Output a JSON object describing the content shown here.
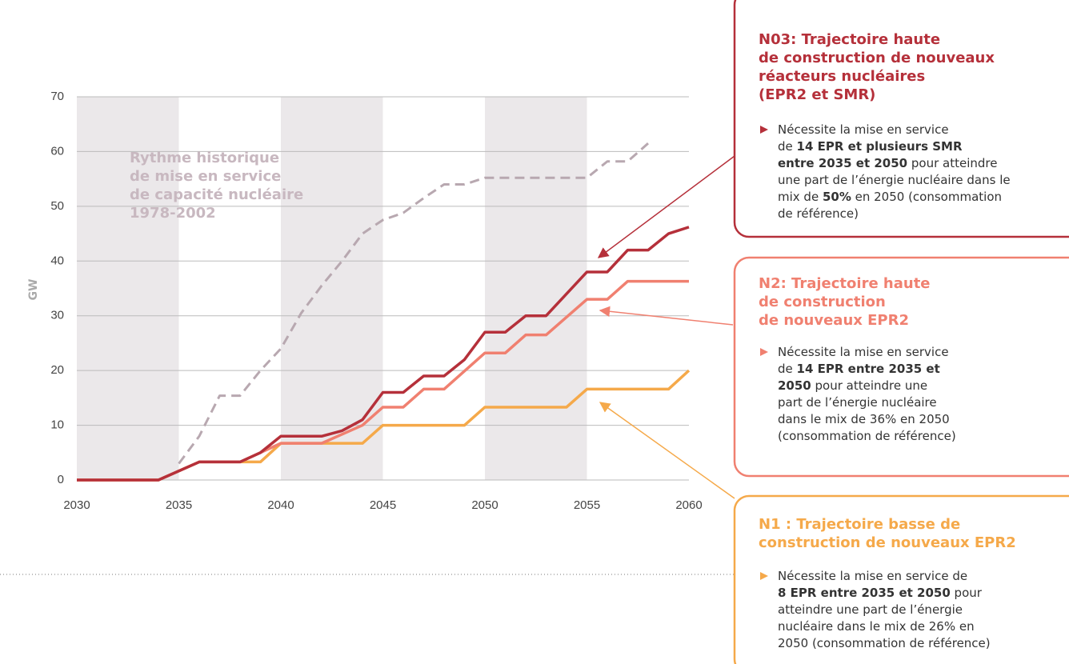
{
  "chart_data": {
    "type": "line",
    "y_label": "GW",
    "xlim": [
      2030,
      2060
    ],
    "xticks": [
      2030,
      2035,
      2040,
      2045,
      2050,
      2055,
      2060
    ],
    "ylim": [
      0,
      70
    ],
    "yticks": [
      0,
      10,
      20,
      30,
      40,
      50,
      60,
      70
    ],
    "grid": true,
    "bands": [
      [
        2030,
        2035
      ],
      [
        2040,
        2045
      ],
      [
        2050,
        2055
      ]
    ],
    "band_color": "#ebe8ea",
    "series": [
      {
        "name": "Rythme historique de mise en service de capacité nucléaire 1978-2002",
        "color": "#b8a8b0",
        "dashed": true,
        "x": [
          2035,
          2036,
          2037,
          2038,
          2039,
          2040,
          2041,
          2042,
          2043,
          2044,
          2045,
          2046,
          2047,
          2048,
          2049,
          2050,
          2055,
          2056,
          2057,
          2058
        ],
        "values": [
          3,
          8,
          15.4,
          15.4,
          20,
          24,
          30.5,
          35.5,
          40,
          45,
          47.5,
          48.8,
          51.5,
          54,
          54,
          55.2,
          55.2,
          58.2,
          58.2,
          61.5
        ]
      },
      {
        "name": "N1",
        "color": "#f5a94a",
        "x": [
          2030,
          2034,
          2036,
          2039,
          2040,
          2044,
          2045,
          2049,
          2050,
          2054,
          2055,
          2059,
          2060
        ],
        "values": [
          0,
          0,
          3.3,
          3.3,
          6.7,
          6.7,
          10,
          10,
          13.3,
          13.3,
          16.6,
          16.6,
          20
        ]
      },
      {
        "name": "N2",
        "color": "#f08070",
        "x": [
          2030,
          2034,
          2036,
          2038,
          2040,
          2042,
          2044,
          2045,
          2046,
          2047,
          2048,
          2050,
          2051,
          2052,
          2053,
          2055,
          2056,
          2057,
          2060
        ],
        "values": [
          0,
          0,
          3.3,
          3.3,
          6.7,
          6.7,
          10,
          13.3,
          13.3,
          16.6,
          16.6,
          23.2,
          23.2,
          26.5,
          26.5,
          33,
          33,
          36.3,
          36.3
        ]
      },
      {
        "name": "N03",
        "color": "#b5303a",
        "x": [
          2030,
          2034,
          2036,
          2038,
          2039,
          2040,
          2042,
          2043,
          2044,
          2045,
          2046,
          2047,
          2048,
          2049,
          2050,
          2051,
          2052,
          2053,
          2055,
          2056,
          2057,
          2058,
          2059,
          2060
        ],
        "values": [
          0,
          0,
          3.3,
          3.3,
          5,
          8,
          8,
          9,
          11,
          16,
          16,
          19,
          19,
          22,
          27,
          27,
          30,
          30,
          38,
          38,
          42,
          42,
          45,
          46.2
        ]
      }
    ],
    "annotation": {
      "lines": [
        "Rythme historique",
        "de mise en service",
        "de capacité nucléaire",
        "1978-2002"
      ],
      "color": "#c8b8c0"
    }
  },
  "boxes": [
    {
      "color": "#b5303a",
      "title": [
        "N03: Trajectoire haute",
        "de construction de nouveaux",
        "réacteurs nucléaires",
        "(EPR2 et SMR)"
      ],
      "lines": [
        [
          {
            "text": "Nécessite la mise en service"
          }
        ],
        [
          {
            "text": "de "
          },
          {
            "text": "14 EPR et plusieurs SMR",
            "bold": true
          }
        ],
        [
          {
            "text": "entre 2035 et 2050",
            "bold": true
          },
          {
            "text": " pour atteindre"
          }
        ],
        [
          {
            "text": "une part de l’énergie nucléaire dans le"
          }
        ],
        [
          {
            "text": "mix de "
          },
          {
            "text": "50%",
            "bold": true
          },
          {
            "text": " en 2050 (consommation"
          }
        ],
        [
          {
            "text": "de référence)"
          }
        ]
      ]
    },
    {
      "color": "#f08070",
      "title": [
        "N2: Trajectoire haute",
        "de construction",
        "de nouveaux EPR2"
      ],
      "lines": [
        [
          {
            "text": "Nécessite la mise en service"
          }
        ],
        [
          {
            "text": "de "
          },
          {
            "text": "14 EPR entre 2035 et",
            "bold": true
          }
        ],
        [
          {
            "text": "2050",
            "bold": true
          },
          {
            "text": " pour atteindre une"
          }
        ],
        [
          {
            "text": "part de l’énergie nucléaire"
          }
        ],
        [
          {
            "text": "dans le mix de 36% en 2050"
          }
        ],
        [
          {
            "text": "(consommation de référence)"
          }
        ]
      ]
    },
    {
      "color": "#f5a94a",
      "title": [
        "N1 : Trajectoire basse de",
        "construction de nouveaux EPR2"
      ],
      "lines": [
        [
          {
            "text": "Nécessite la mise en service de"
          }
        ],
        [
          {
            "text": "8 EPR entre 2035 et 2050",
            "bold": true
          },
          {
            "text": " pour"
          }
        ],
        [
          {
            "text": "atteindre une part de l’énergie"
          }
        ],
        [
          {
            "text": "nucléaire dans le mix de 26% en"
          }
        ],
        [
          {
            "text": "2050 (consommation de référence)"
          }
        ]
      ]
    }
  ]
}
